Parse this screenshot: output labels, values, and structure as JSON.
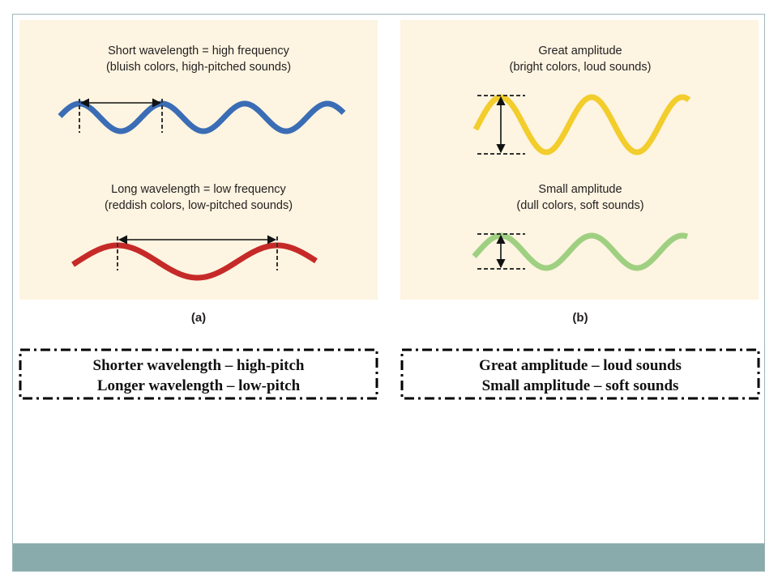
{
  "panels": [
    {
      "label": "(a)",
      "top": {
        "title": "Short wavelength = high frequency",
        "subtitle": "(bluish colors, high-pitched sounds)"
      },
      "bottom": {
        "title": "Long wavelength = low frequency",
        "subtitle": "(reddish colors, low-pitched sounds)"
      }
    },
    {
      "label": "(b)",
      "top": {
        "title": "Great amplitude",
        "subtitle": "(bright colors, loud sounds)"
      },
      "bottom": {
        "title": "Small amplitude",
        "subtitle": "(dull colors, soft sounds)"
      }
    }
  ],
  "notes": [
    [
      "Shorter wavelength – high-pitch",
      "Longer wavelength – low-pitch"
    ],
    [
      "Great amplitude – loud sounds",
      "Small amplitude – soft sounds"
    ]
  ]
}
